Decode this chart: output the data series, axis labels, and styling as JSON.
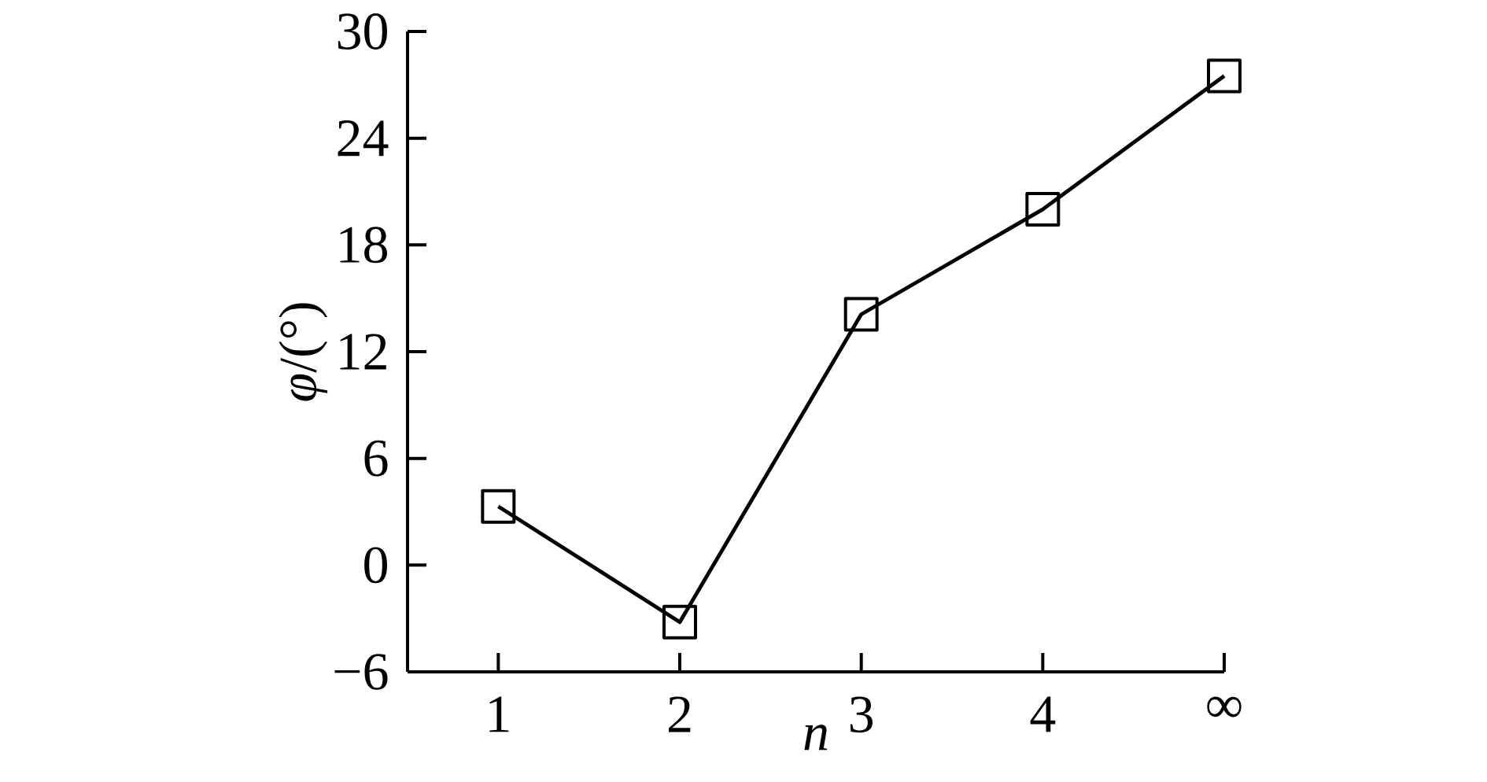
{
  "chart_data": {
    "type": "line",
    "xlabel": "n",
    "ylabel": "*φ*/(°)",
    "categories": [
      "1",
      "2",
      "3",
      "4",
      "∞"
    ],
    "series": [
      {
        "color": "#000000",
        "values": [
          3.3,
          -3.2,
          14.1,
          20.0,
          27.5
        ]
      }
    ],
    "ylim": [
      -6,
      30
    ],
    "yticks": [
      {
        "value": -6,
        "label": "−6"
      },
      0,
      6,
      12,
      18,
      24,
      30
    ],
    "marker": "square",
    "line_style": "solid",
    "grid": false
  }
}
